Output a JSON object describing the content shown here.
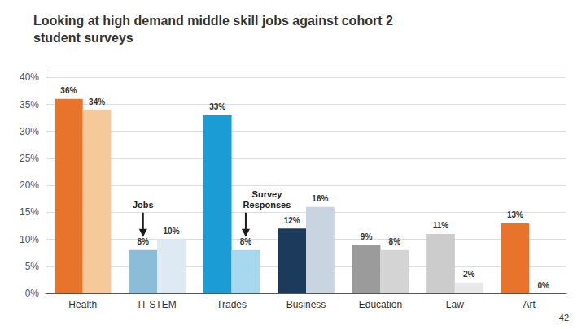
{
  "chart_data": {
    "type": "bar",
    "title": "Looking at high demand middle skill jobs against cohort 2\nstudent surveys",
    "categories": [
      "Health",
      "IT STEM",
      "Trades",
      "Business",
      "Education",
      "Law",
      "Art"
    ],
    "series": [
      {
        "values": [
          36,
          8,
          33,
          12,
          9,
          11,
          13
        ],
        "value_labels": [
          "36%",
          "8%",
          "33%",
          "12%",
          "9%",
          "11%",
          "13%"
        ],
        "colors": [
          "#E8732A",
          "#8BBDD9",
          "#1B9CD4",
          "#1B3A5C",
          "#9B9B9B",
          "#CCCCCC",
          "#E8732A"
        ]
      },
      {
        "values": [
          34,
          10,
          8,
          16,
          8,
          2,
          0
        ],
        "value_labels": [
          "34%",
          "10%",
          "8%",
          "16%",
          "8%",
          "2%",
          "0%"
        ],
        "colors": [
          "#F5C99A",
          "#DDEAF4",
          "#A8D8F0",
          "#C8D4DF",
          "#D4D4D4",
          "#E8E8E8",
          "#F5C99A"
        ]
      }
    ],
    "ylim": [
      0,
      42
    ],
    "yticks": [
      {
        "value": 0,
        "label": "0%"
      },
      {
        "value": 5,
        "label": "5%"
      },
      {
        "value": 10,
        "label": "10%"
      },
      {
        "value": 15,
        "label": "15%"
      },
      {
        "value": 20,
        "label": "20%"
      },
      {
        "value": 25,
        "label": "25%"
      },
      {
        "value": 30,
        "label": "30%"
      },
      {
        "value": 35,
        "label": "35%"
      },
      {
        "value": 40,
        "label": "40%"
      }
    ],
    "grid": true,
    "data_labels": true,
    "annotations": [
      {
        "text": "Jobs",
        "x": "IT STEM",
        "y": 8
      },
      {
        "text": "Survey\nResponses",
        "x": "Trades",
        "y": 8
      }
    ],
    "page_number": "42"
  }
}
